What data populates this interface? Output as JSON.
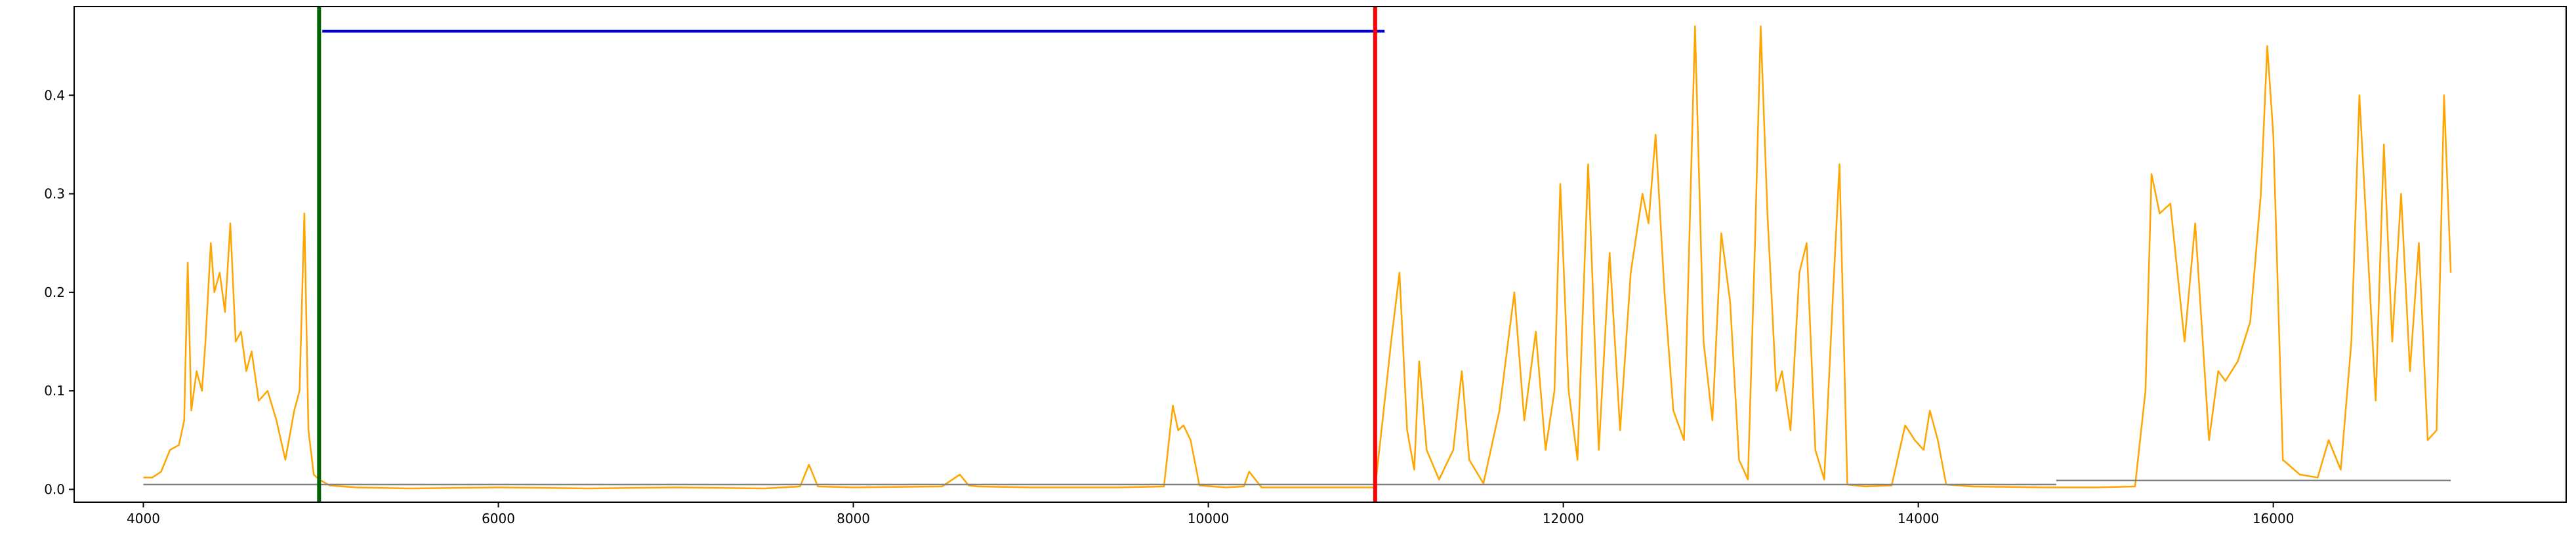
{
  "chart_data": {
    "type": "line",
    "xlim": [
      3610,
      17650
    ],
    "ylim": [
      -0.013,
      0.49
    ],
    "xticks": [
      4000,
      6000,
      8000,
      10000,
      12000,
      14000,
      16000
    ],
    "yticks": [
      {
        "value": 0,
        "label": "0.0"
      },
      0.1,
      0.2,
      0.3,
      0.4
    ],
    "grid": false,
    "series": [
      {
        "color": "#ffa500",
        "x": [
          4000,
          4050,
          4100,
          4150,
          4200,
          4230,
          4250,
          4270,
          4300,
          4330,
          4350,
          4380,
          4400,
          4430,
          4460,
          4490,
          4520,
          4550,
          4580,
          4610,
          4650,
          4700,
          4750,
          4800,
          4850,
          4880,
          4907,
          4930,
          4960,
          4990,
          5050,
          5200,
          5500,
          6000,
          6500,
          7000,
          7500,
          7700,
          7750,
          7800,
          8000,
          8500,
          8600,
          8650,
          8700,
          9000,
          9500,
          9750,
          9800,
          9830,
          9860,
          9900,
          9950,
          10100,
          10200,
          10230,
          10300,
          10600,
          10940,
          11000,
          11030,
          11077,
          11120,
          11160,
          11188,
          11230,
          11300,
          11380,
          11428,
          11470,
          11550,
          11640,
          11724,
          11780,
          11845,
          11900,
          11950,
          11983,
          12030,
          12080,
          12140,
          12200,
          12261,
          12320,
          12380,
          12446,
          12480,
          12520,
          12570,
          12620,
          12680,
          12742,
          12790,
          12840,
          12890,
          12940,
          12990,
          13040,
          13080,
          13112,
          13150,
          13200,
          13232,
          13280,
          13330,
          13371,
          13420,
          13470,
          13520,
          13556,
          13600,
          13700,
          13850,
          13926,
          13980,
          14030,
          14065,
          14110,
          14157,
          14300,
          14700,
          15000,
          15221,
          15280,
          15314,
          15360,
          15420,
          15500,
          15560,
          15638,
          15690,
          15730,
          15800,
          15870,
          15930,
          15966,
          16000,
          16054,
          16150,
          16250,
          16312,
          16380,
          16440,
          16485,
          16530,
          16577,
          16623,
          16670,
          16720,
          16770,
          16820,
          16870,
          16920,
          16962,
          17000
        ],
        "values": [
          0.012,
          0.012,
          0.018,
          0.04,
          0.045,
          0.07,
          0.23,
          0.08,
          0.12,
          0.1,
          0.15,
          0.25,
          0.2,
          0.22,
          0.18,
          0.27,
          0.15,
          0.16,
          0.12,
          0.14,
          0.09,
          0.1,
          0.07,
          0.03,
          0.08,
          0.1,
          0.28,
          0.06,
          0.015,
          0.01,
          0.004,
          0.002,
          0.001,
          0.002,
          0.001,
          0.002,
          0.001,
          0.003,
          0.025,
          0.003,
          0.002,
          0.003,
          0.015,
          0.004,
          0.003,
          0.002,
          0.002,
          0.003,
          0.085,
          0.06,
          0.065,
          0.05,
          0.004,
          0.002,
          0.003,
          0.018,
          0.002,
          0.002,
          0.002,
          0.1,
          0.15,
          0.22,
          0.06,
          0.02,
          0.13,
          0.04,
          0.01,
          0.04,
          0.12,
          0.03,
          0.006,
          0.08,
          0.2,
          0.07,
          0.16,
          0.04,
          0.1,
          0.31,
          0.1,
          0.03,
          0.33,
          0.04,
          0.24,
          0.06,
          0.22,
          0.3,
          0.27,
          0.36,
          0.2,
          0.08,
          0.05,
          0.47,
          0.15,
          0.07,
          0.26,
          0.19,
          0.03,
          0.01,
          0.25,
          0.47,
          0.28,
          0.1,
          0.12,
          0.06,
          0.22,
          0.25,
          0.04,
          0.01,
          0.2,
          0.33,
          0.005,
          0.003,
          0.004,
          0.065,
          0.05,
          0.04,
          0.08,
          0.05,
          0.005,
          0.003,
          0.002,
          0.002,
          0.003,
          0.1,
          0.32,
          0.28,
          0.29,
          0.15,
          0.27,
          0.05,
          0.12,
          0.11,
          0.13,
          0.17,
          0.3,
          0.45,
          0.36,
          0.03,
          0.015,
          0.012,
          0.05,
          0.02,
          0.15,
          0.4,
          0.25,
          0.09,
          0.35,
          0.15,
          0.3,
          0.12,
          0.25,
          0.05,
          0.06,
          0.4,
          0.22
        ],
        "width": 2.5
      },
      {
        "color": "#0000cc",
        "x": [
          5008,
          10993
        ],
        "values": [
          0.465,
          0.465
        ],
        "width": 4
      },
      {
        "color": "#808080",
        "x": [
          4000,
          14777
        ],
        "values": [
          0.005,
          0.005
        ],
        "width": 2.5
      },
      {
        "color": "#808080",
        "x": [
          14777,
          17000
        ],
        "values": [
          0.009,
          0.009
        ],
        "width": 2.5
      }
    ],
    "vlines": [
      {
        "x": 4990,
        "color": "#006400"
      },
      {
        "x": 10940,
        "color": "#ff0000"
      }
    ]
  }
}
